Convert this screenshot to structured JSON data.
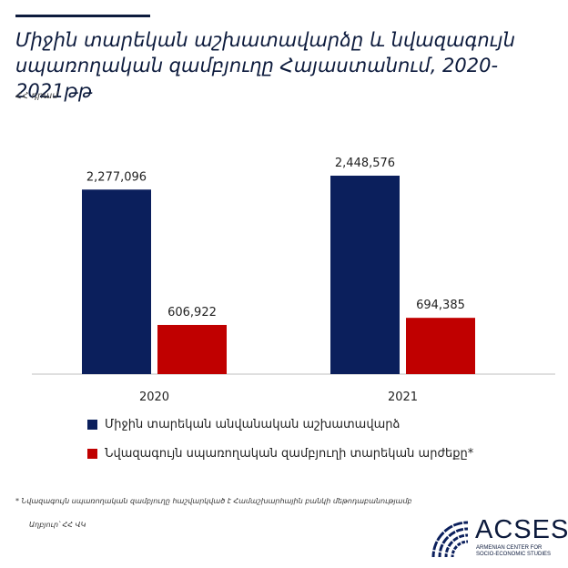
{
  "title_line1": "Միջին տարեկան աշխատավարձը և նվազագույն",
  "title_line2": "սպառողական զամբյուղը Հայաստանում, 2020-2021թթ",
  "unit": "ՀՀ դրամ",
  "colors": {
    "navy": "#0b1f5c",
    "red": "#c00000",
    "axis": "#bfbfbf"
  },
  "chart_data": {
    "type": "bar",
    "categories": [
      "2020",
      "2021"
    ],
    "series": [
      {
        "name": "Միջին տարեկան անվանական աշխատավարձ",
        "values": [
          2277096,
          2448576
        ],
        "labels": [
          "2,277,096",
          "2,448,576"
        ]
      },
      {
        "name": "Նվազագույն սպառողական զամբյուղի տարեկան արժեքը*",
        "values": [
          606922,
          694385
        ],
        "labels": [
          "606,922",
          "694,385"
        ]
      }
    ]
  },
  "footnote": "* Նվազագույն սպառողական զամբյուղը հաշվարկված է Համաշխարհային բանկի մեթոդաբանությամբ",
  "source": "Աղբյուր՝ ՀՀ ՎԿ",
  "logo": {
    "name": "ACSES",
    "subtitle_line1": "ARMENIAN CENTER FOR",
    "subtitle_line2": "SOCIO-ECONOMIC STUDIES"
  }
}
